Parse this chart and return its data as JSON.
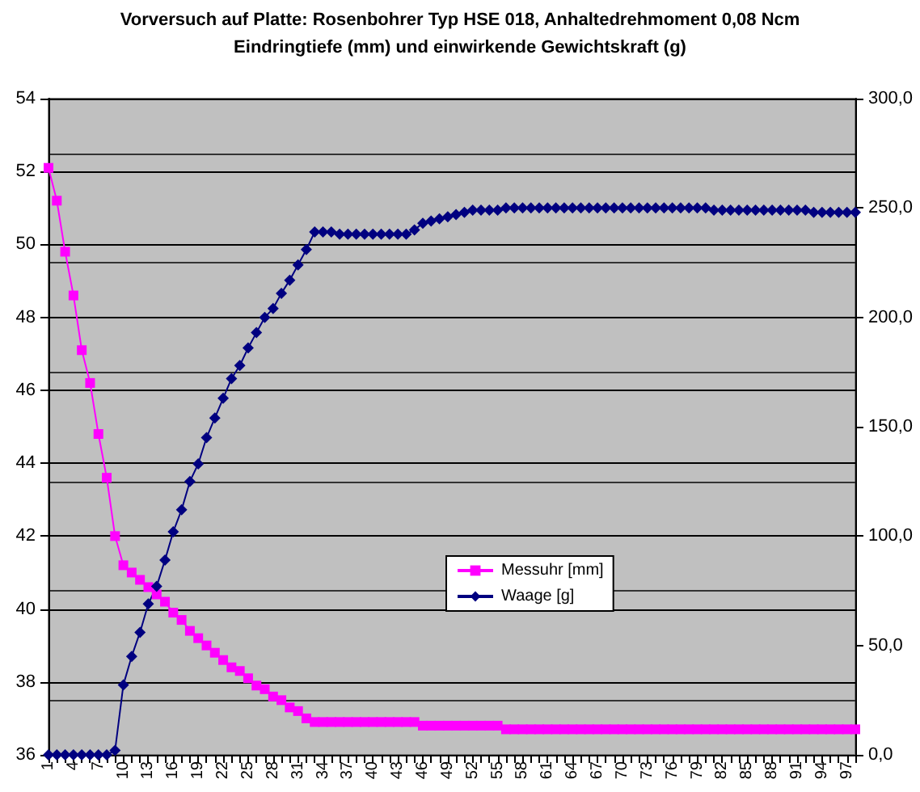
{
  "chart_data": {
    "type": "line",
    "title": "Vorversuch auf Platte: Rosenbohrer Typ HSE 018, Anhaltedrehmoment 0,08 Ncm",
    "subtitle": "Eindringtiefe (mm) und einwirkende Gewichtskraft (g)",
    "categories": [
      "1",
      null,
      null,
      "4",
      null,
      null,
      "7",
      null,
      null,
      "10",
      null,
      null,
      "13",
      null,
      null,
      "16",
      null,
      null,
      "19",
      null,
      null,
      "22",
      null,
      null,
      "25",
      null,
      null,
      "28",
      null,
      null,
      "31",
      null,
      null,
      "34",
      null,
      null,
      "37",
      null,
      null,
      "40",
      null,
      null,
      "43",
      null,
      null,
      "46",
      null,
      null,
      "49",
      null,
      null,
      "52",
      null,
      null,
      "55",
      null,
      null,
      "58",
      null,
      null,
      "61",
      null,
      null,
      "64",
      null,
      null,
      "67",
      null,
      null,
      "70",
      null,
      null,
      "73",
      null,
      null,
      "76",
      null,
      null,
      "79",
      null,
      null,
      "82",
      null,
      null,
      "85",
      null,
      null,
      "88",
      null,
      null,
      "91",
      null,
      null,
      "94",
      null,
      null,
      "97",
      null
    ],
    "series": [
      {
        "name": "Messuhr [mm]",
        "color": "#ff00ff",
        "marker": "square",
        "values": [
          52.1,
          51.2,
          49.8,
          48.6,
          47.1,
          46.2,
          44.8,
          43.6,
          42.0,
          41.2,
          41.0,
          40.8,
          40.6,
          40.4,
          40.2,
          39.9,
          39.7,
          39.4,
          39.2,
          39.0,
          38.8,
          38.6,
          38.4,
          38.3,
          38.1,
          37.9,
          37.8,
          37.6,
          37.5,
          37.3,
          37.2,
          37.0,
          36.9,
          36.9,
          36.9,
          36.9,
          36.9,
          36.9,
          36.9,
          36.9,
          36.9,
          36.9,
          36.9,
          36.9,
          36.9,
          36.8,
          36.8,
          36.8,
          36.8,
          36.8,
          36.8,
          36.8,
          36.8,
          36.8,
          36.8,
          36.7,
          36.7,
          36.7,
          36.7,
          36.7,
          36.7,
          36.7,
          36.7,
          36.7,
          36.7,
          36.7,
          36.7,
          36.7,
          36.7,
          36.7,
          36.7,
          36.7,
          36.7,
          36.7,
          36.7,
          36.7,
          36.7,
          36.7,
          36.7,
          36.7,
          36.7,
          36.7,
          36.7,
          36.7,
          36.7,
          36.7,
          36.7,
          36.7,
          36.7,
          36.7,
          36.7,
          36.7,
          36.7,
          36.7,
          36.7,
          36.7,
          36.7,
          36.7
        ]
      },
      {
        "name": "Waage [g]",
        "color": "#000080",
        "marker": "diamond",
        "axis": "y2",
        "values": [
          0,
          0,
          0,
          0,
          0,
          0,
          0,
          0,
          2,
          32,
          45,
          56,
          69,
          77,
          89,
          102,
          112,
          125,
          133,
          145,
          154,
          163,
          172,
          178,
          186,
          193,
          200,
          204,
          211,
          217,
          224,
          231,
          239,
          239,
          239,
          238,
          238,
          238,
          238,
          238,
          238,
          238,
          238,
          238,
          240,
          243,
          244,
          245,
          246,
          247,
          248,
          249,
          249,
          249,
          249,
          250,
          250,
          250,
          250,
          250,
          250,
          250,
          250,
          250,
          250,
          250,
          250,
          250,
          250,
          250,
          250,
          250,
          250,
          250,
          250,
          250,
          250,
          250,
          250,
          250,
          249,
          249,
          249,
          249,
          249,
          249,
          249,
          249,
          249,
          249,
          249,
          249,
          248,
          248,
          248,
          248,
          248,
          248
        ]
      }
    ],
    "ylim": [
      36,
      54
    ],
    "yticks": [
      36,
      38,
      40,
      42,
      44,
      46,
      48,
      50,
      52,
      54
    ],
    "y2lim": [
      0,
      300
    ],
    "y2ticks": [
      {
        "value": 0,
        "label": "0,0"
      },
      {
        "value": 50,
        "label": "50,0"
      },
      {
        "value": 100,
        "label": "100,0"
      },
      {
        "value": 150,
        "label": "150,0"
      },
      {
        "value": 200,
        "label": "200,0"
      },
      {
        "value": 250,
        "label": "250,0"
      },
      {
        "value": 300,
        "label": "300,0"
      }
    ],
    "grid": "y",
    "legend": "center",
    "line_style": "solid"
  }
}
